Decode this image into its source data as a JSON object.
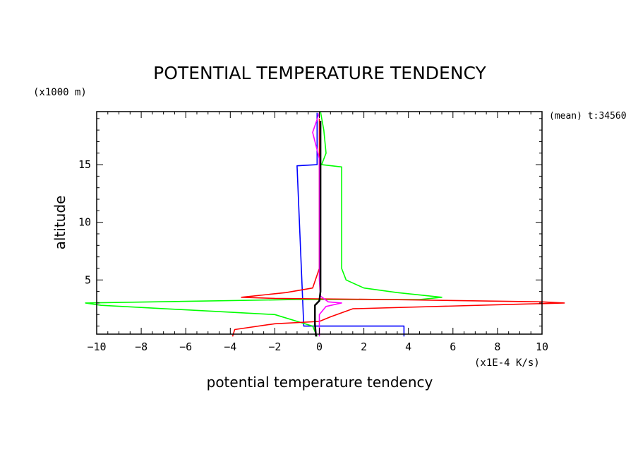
{
  "chart_data": {
    "type": "line",
    "title": "POTENTIAL TEMPERATURE TENDENCY",
    "xlabel": "potential temperature tendency",
    "ylabel": "altitude",
    "x_unit": "(x1E-4 K/s)",
    "y_unit": "(x1000 m)",
    "annotation": "(mean) t:34560",
    "xlim": [
      -10,
      10
    ],
    "ylim": [
      0.3,
      19.6
    ],
    "x_ticks": [
      -10,
      -8,
      -6,
      -4,
      -2,
      0,
      2,
      4,
      6,
      8,
      10
    ],
    "y_ticks": [
      5,
      10,
      15
    ],
    "grid": false,
    "series": [
      {
        "color": "#0000ff",
        "points": [
          [
            -0.1,
            19.5
          ],
          [
            -0.1,
            15.0
          ],
          [
            -1.0,
            14.9
          ],
          [
            -0.7,
            1.0
          ],
          [
            3.8,
            1.0
          ],
          [
            3.8,
            0.1
          ]
        ]
      },
      {
        "color": "#00ff00",
        "points": [
          [
            0.05,
            19.6
          ],
          [
            0.2,
            18.0
          ],
          [
            0.3,
            16.0
          ],
          [
            0.1,
            15.0
          ],
          [
            1.0,
            14.8
          ],
          [
            1.0,
            6.0
          ],
          [
            1.2,
            5.0
          ],
          [
            2.0,
            4.3
          ],
          [
            3.5,
            3.9
          ],
          [
            5.5,
            3.5
          ],
          [
            4.5,
            3.3
          ],
          [
            -1.0,
            3.3
          ],
          [
            -10.5,
            3.0
          ],
          [
            -9.8,
            2.8
          ],
          [
            -2.0,
            2.0
          ],
          [
            -0.3,
            1.0
          ],
          [
            -0.1,
            0.1
          ]
        ]
      },
      {
        "color": "#ff0000",
        "points": [
          [
            0.0,
            19.0
          ],
          [
            0.0,
            15.0
          ],
          [
            0.0,
            6.0
          ],
          [
            -0.3,
            4.3
          ],
          [
            -1.5,
            3.9
          ],
          [
            -3.5,
            3.5
          ],
          [
            -2.0,
            3.4
          ],
          [
            3.0,
            3.3
          ],
          [
            10.0,
            3.1
          ],
          [
            11.0,
            3.0
          ],
          [
            9.0,
            2.9
          ],
          [
            1.5,
            2.5
          ],
          [
            0.5,
            1.8
          ],
          [
            0.0,
            1.4
          ],
          [
            -2.0,
            1.2
          ],
          [
            -3.8,
            0.7
          ],
          [
            -3.9,
            0.1
          ]
        ]
      },
      {
        "color": "#ff00ff",
        "points": [
          [
            0.0,
            19.5
          ],
          [
            -0.3,
            17.8
          ],
          [
            0.0,
            15.5
          ],
          [
            0.0,
            5.0
          ],
          [
            0.05,
            3.6
          ],
          [
            0.4,
            3.1
          ],
          [
            1.0,
            3.0
          ],
          [
            0.3,
            2.7
          ],
          [
            0.0,
            2.0
          ],
          [
            0.0,
            0.1
          ]
        ]
      },
      {
        "color": "#000000",
        "points": [
          [
            0.05,
            18.8
          ],
          [
            0.05,
            4.0
          ],
          [
            0.0,
            3.2
          ],
          [
            -0.2,
            2.8
          ],
          [
            -0.2,
            1.2
          ],
          [
            -0.15,
            0.1
          ]
        ]
      }
    ]
  }
}
